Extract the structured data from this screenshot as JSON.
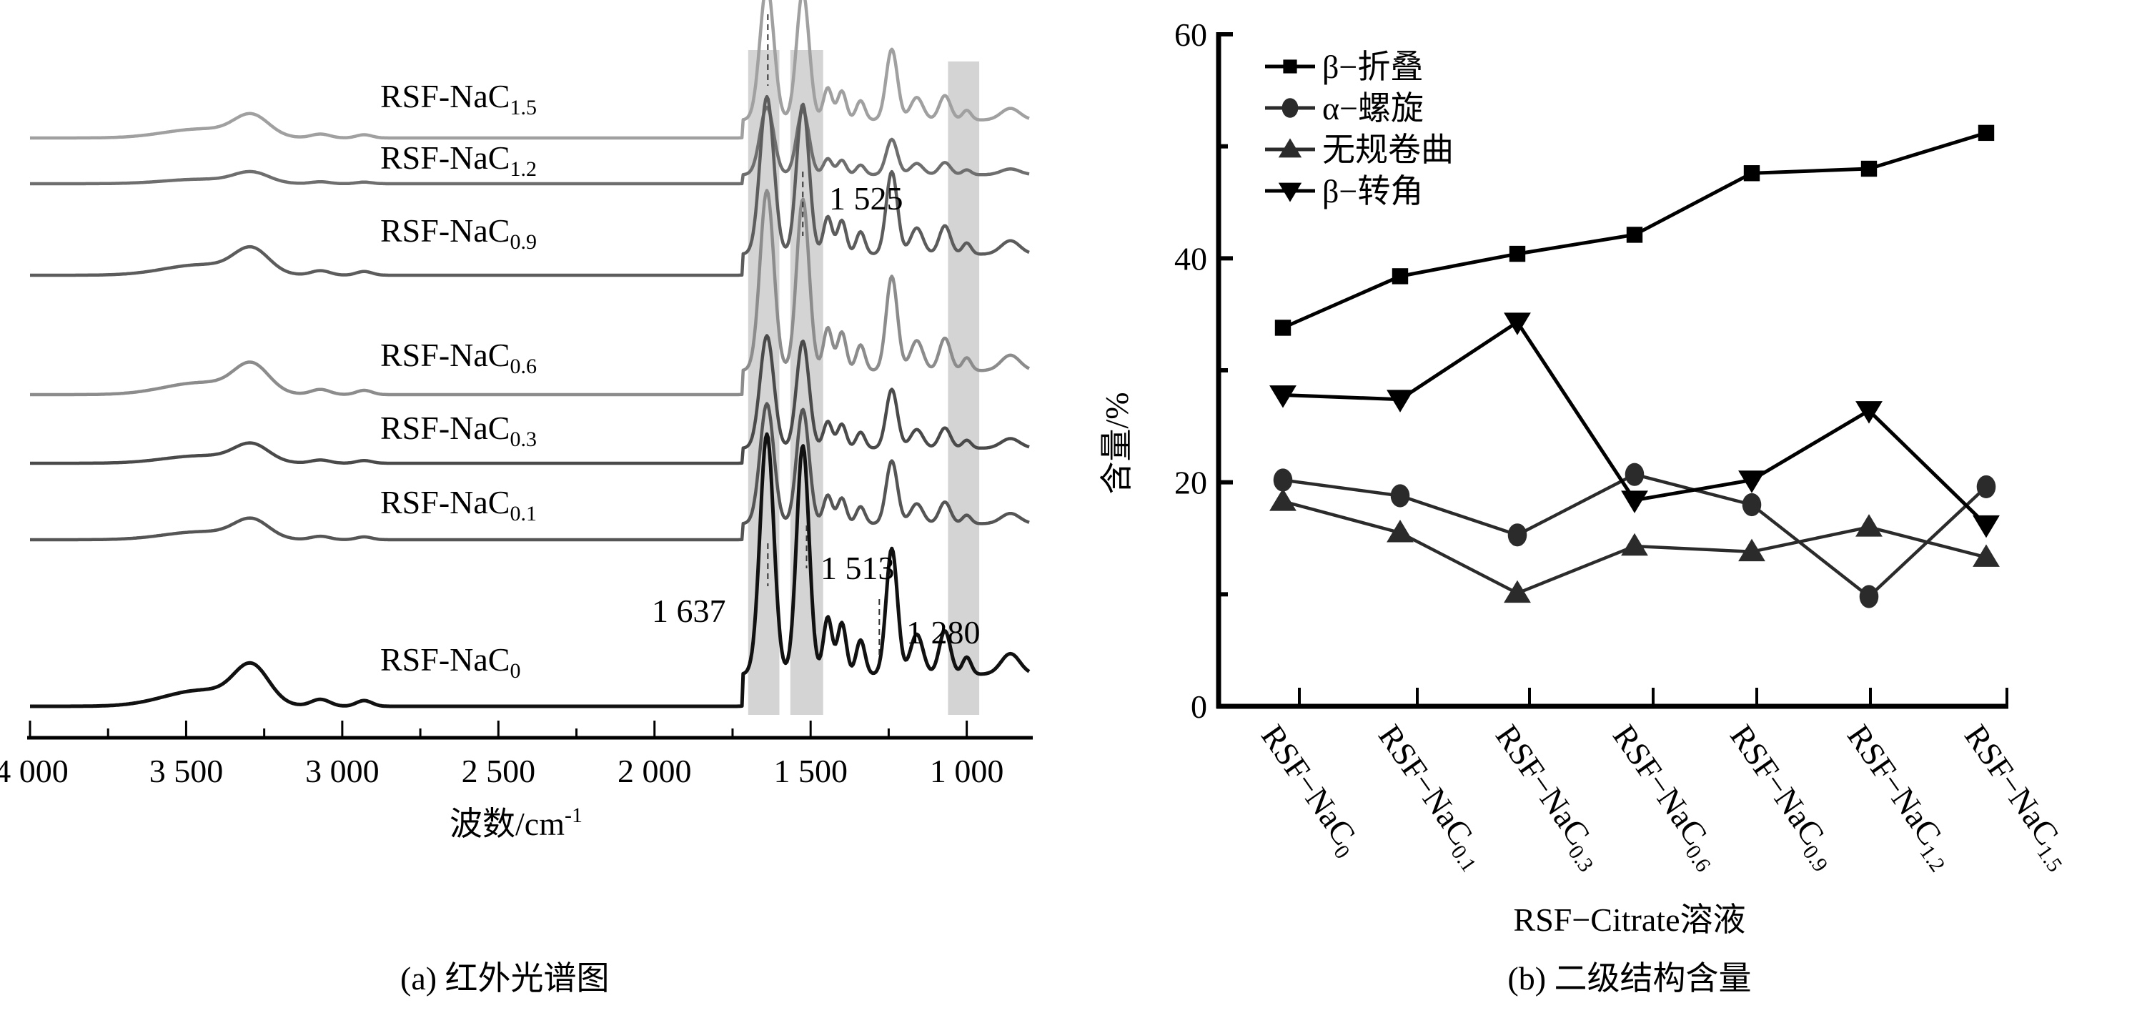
{
  "chart_data": [
    {
      "type": "line",
      "title": "",
      "caption": "(a)  红外光谱图",
      "xlabel": "波数/cm",
      "xlabel_superscript": "-1",
      "xlim": [
        4000,
        800
      ],
      "x_reversed": true,
      "xticks": [
        4000,
        3500,
        3000,
        2500,
        2000,
        1500,
        1000
      ],
      "xtick_labels": [
        "4 000",
        "3 500",
        "3 000",
        "2 500",
        "2 000",
        "1 500",
        "1 000"
      ],
      "y_axis_shown": false,
      "highlight_bands": [
        {
          "from": 1700,
          "to": 1600
        },
        {
          "from": 1565,
          "to": 1460
        },
        {
          "from": 1060,
          "to": 960
        }
      ],
      "series": [
        {
          "name": "RSF-NaC",
          "sub": "1.5",
          "color": "#a0a0a0",
          "offset": 6,
          "scale": 0.9
        },
        {
          "name": "RSF-NaC",
          "sub": "1.2",
          "color": "#6e6e6e",
          "offset": 5,
          "scale": 0.45
        },
        {
          "name": "RSF-NaC",
          "sub": "0.9",
          "color": "#5c5c5c",
          "offset": 4,
          "scale": 1.05
        },
        {
          "name": "RSF-NaC",
          "sub": "0.6",
          "color": "#8c8c8c",
          "offset": 3,
          "scale": 1.2
        },
        {
          "name": "RSF-NaC",
          "sub": "0.3",
          "color": "#4a4a4a",
          "offset": 2,
          "scale": 0.75
        },
        {
          "name": "RSF-NaC",
          "sub": "0.1",
          "color": "#555555",
          "offset": 1,
          "scale": 0.8
        },
        {
          "name": "RSF-NaC",
          "sub": "0",
          "color": "#111111",
          "offset": 0,
          "scale": 1.6
        }
      ],
      "annotations": [
        {
          "text": "1 525",
          "x": 1525
        },
        {
          "text": "1 637",
          "x": 1637
        },
        {
          "text": "1 513",
          "x": 1513
        },
        {
          "text": "1 280",
          "x": 1280
        }
      ]
    },
    {
      "type": "line",
      "title": "",
      "caption": "(b)  二级结构含量",
      "xlabel": "RSF−Citrate溶液",
      "ylabel": "含量/%",
      "ylim": [
        0,
        60
      ],
      "yticks": [
        0,
        20,
        40,
        60
      ],
      "ytick_labels": [
        "0",
        "20",
        "40",
        "60"
      ],
      "categories": [
        {
          "base": "RSF−NaC",
          "sub": "0"
        },
        {
          "base": "RSF−NaC",
          "sub": "0.1"
        },
        {
          "base": "RSF−NaC",
          "sub": "0.3"
        },
        {
          "base": "RSF−NaC",
          "sub": "0.6"
        },
        {
          "base": "RSF−NaC",
          "sub": "0.9"
        },
        {
          "base": "RSF−NaC",
          "sub": "1.2"
        },
        {
          "base": "RSF−NaC",
          "sub": "1.5"
        }
      ],
      "legend_position": "top-left",
      "series": [
        {
          "name": "β−折叠",
          "marker": "square",
          "color": "#000000",
          "values": [
            33.8,
            38.4,
            40.4,
            42.1,
            47.6,
            48.0,
            51.2
          ]
        },
        {
          "name": "α−螺旋",
          "marker": "circle",
          "color": "#2b2b2b",
          "values": [
            20.2,
            18.8,
            15.3,
            20.7,
            18.0,
            9.8,
            19.6
          ]
        },
        {
          "name": "无规卷曲",
          "marker": "triangle-up",
          "color": "#2b2b2b",
          "values": [
            18.3,
            15.5,
            10.1,
            14.3,
            13.8,
            16.0,
            13.3
          ]
        },
        {
          "name": "β−转角",
          "marker": "triangle-down",
          "color": "#000000",
          "values": [
            27.8,
            27.4,
            34.3,
            18.4,
            20.2,
            26.4,
            16.2
          ]
        }
      ]
    }
  ]
}
